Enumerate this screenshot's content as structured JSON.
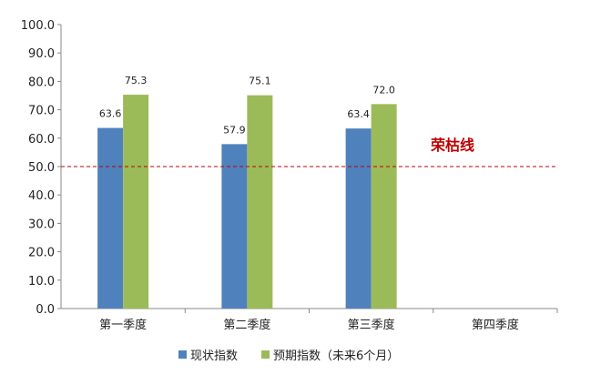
{
  "chart_data": {
    "type": "bar",
    "categories": [
      "第一季度",
      "第二季度",
      "第三季度",
      "第四季度"
    ],
    "series": [
      {
        "name": "现状指数",
        "values": [
          63.6,
          57.9,
          63.4,
          null
        ],
        "color": "#4f81bd"
      },
      {
        "name": "预期指数（未来6个月）",
        "values": [
          75.3,
          75.1,
          72.0,
          null
        ],
        "color": "#9bbb59"
      }
    ],
    "data_labels": [
      [
        "63.6",
        "57.9",
        "63.4",
        ""
      ],
      [
        "75.3",
        "75.1",
        "72.0",
        ""
      ]
    ],
    "y_ticks": [
      "0.0",
      "10.0",
      "20.0",
      "30.0",
      "40.0",
      "50.0",
      "60.0",
      "70.0",
      "80.0",
      "90.0",
      "100.0"
    ],
    "ylim": [
      0,
      100
    ],
    "reference_line": {
      "value": 50,
      "label": "荣枯线",
      "color": "#c00000",
      "style": "dashed"
    },
    "legend_position": "bottom",
    "grid": false
  }
}
